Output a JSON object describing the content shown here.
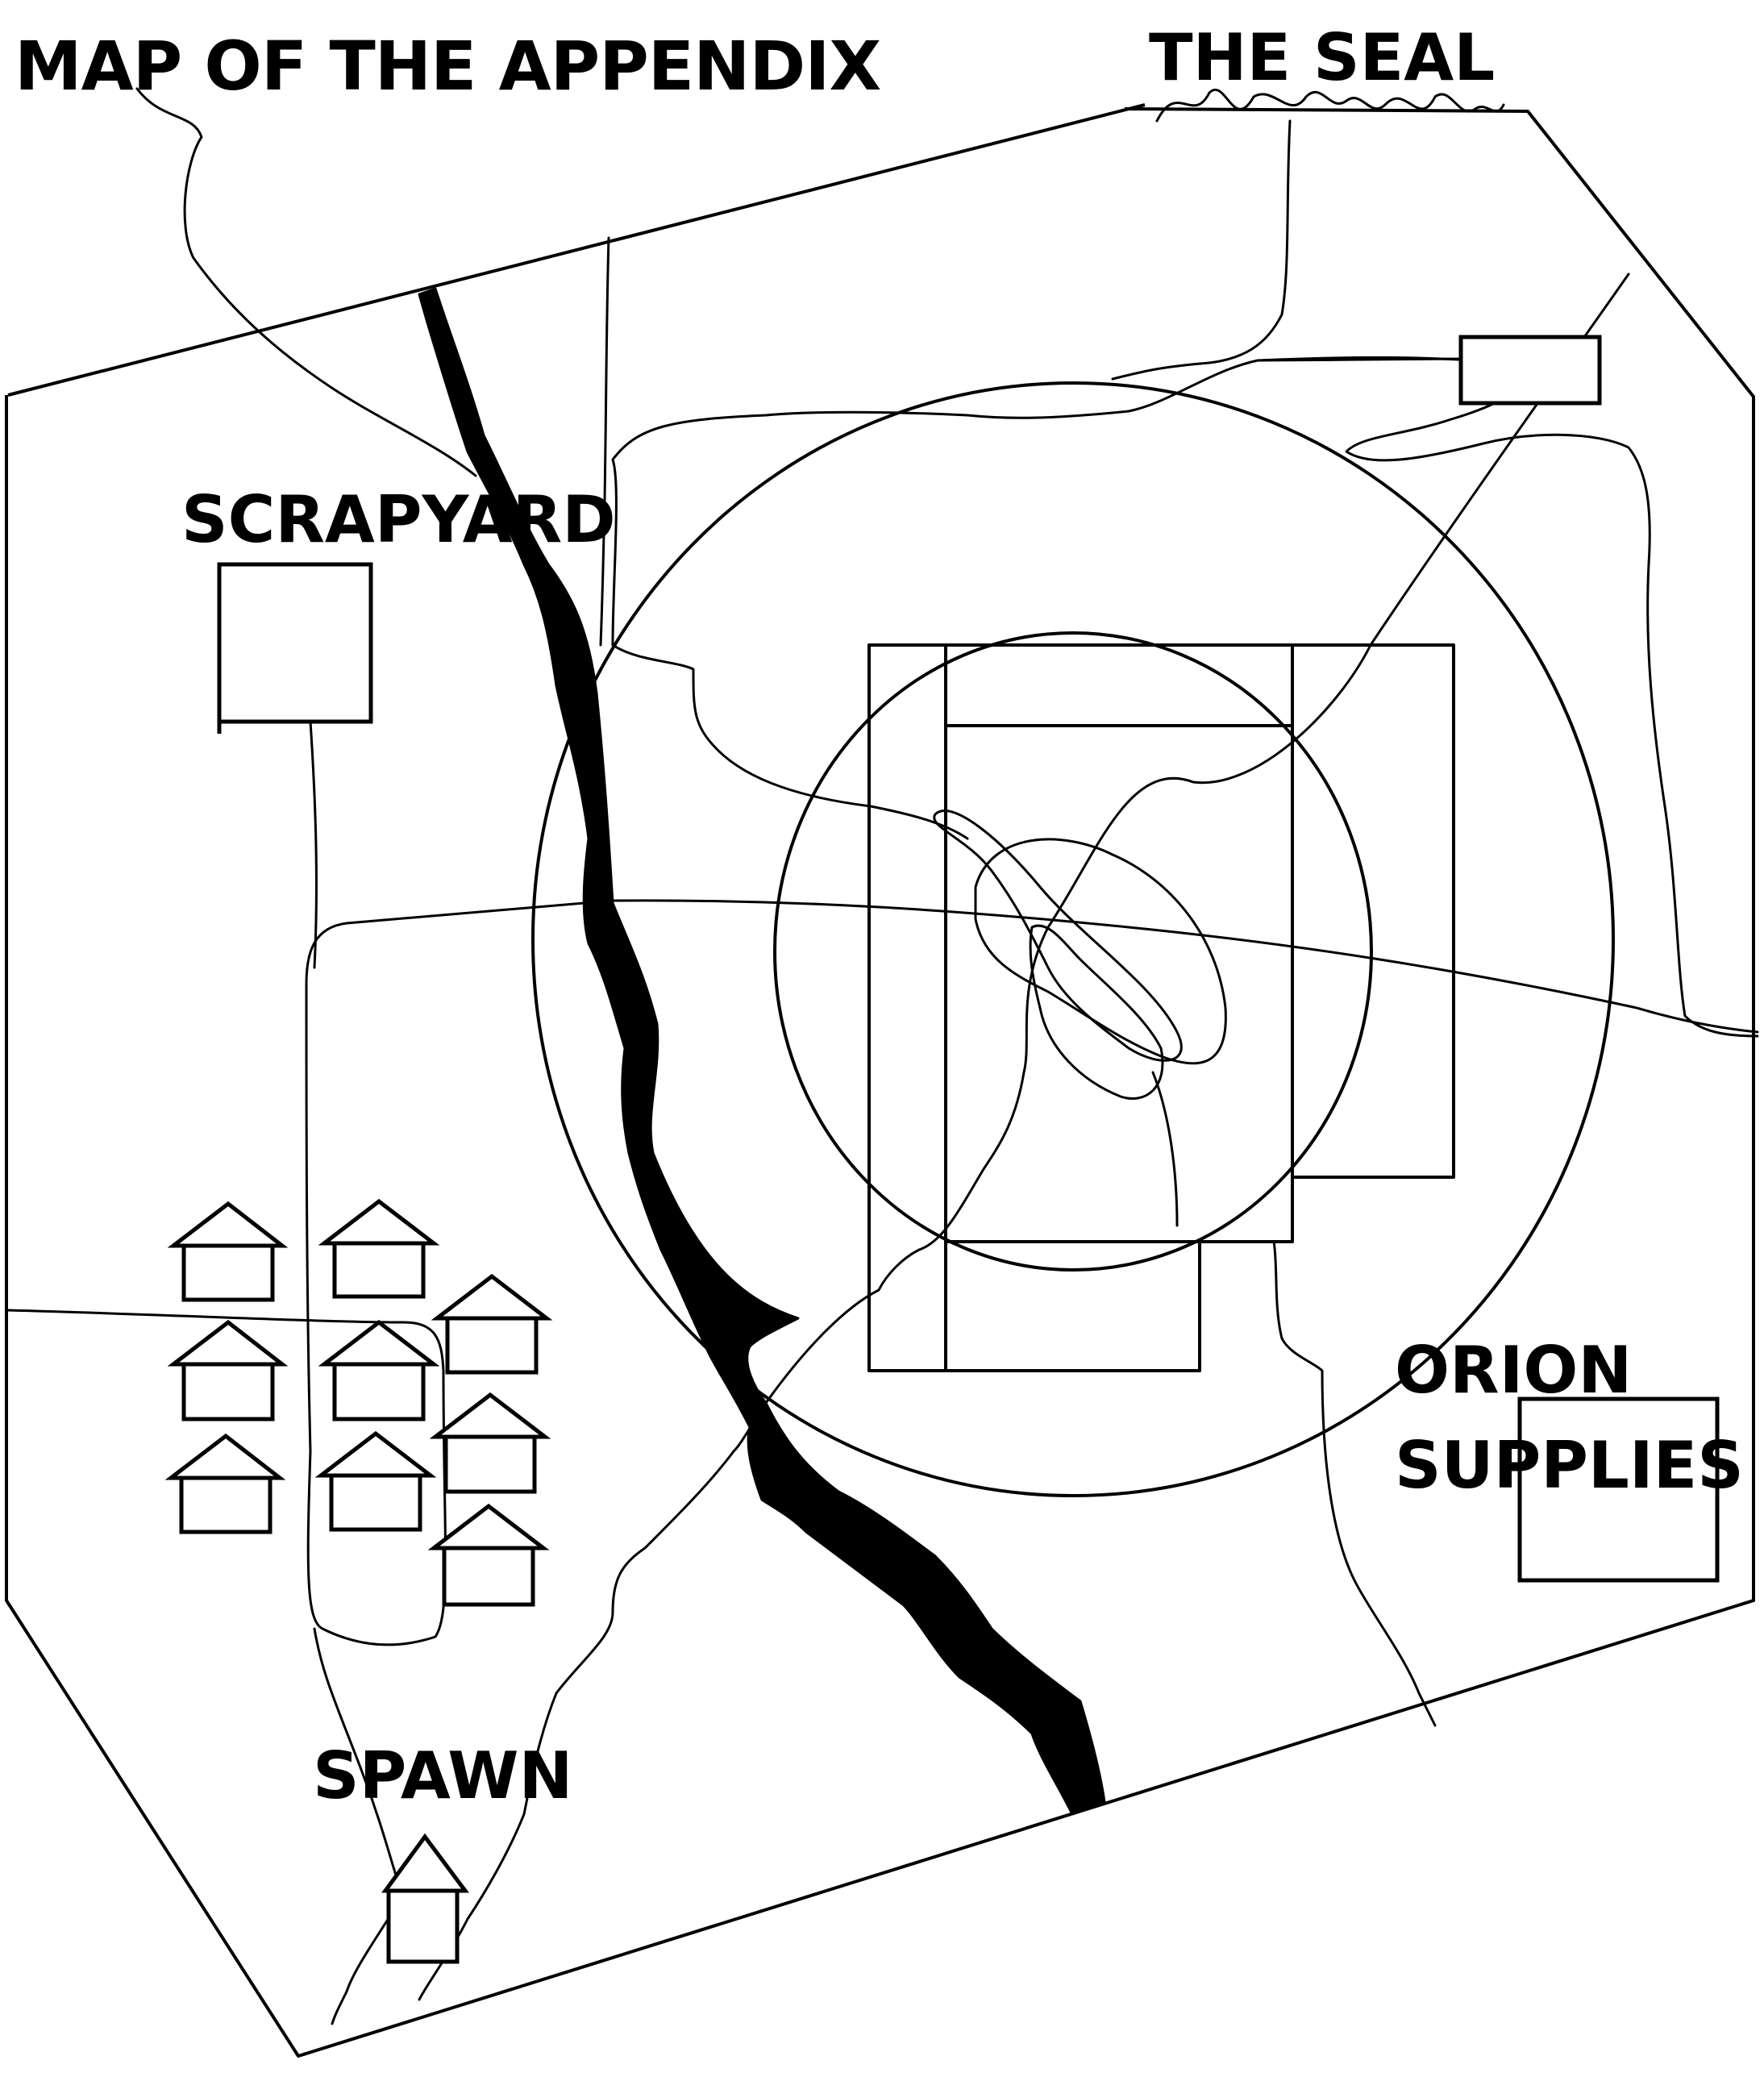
{
  "map": {
    "title": "MAP OF THE APPENDIX",
    "locations": {
      "seal": "THE SEAL",
      "scrapyard": "SCRAPYARD",
      "orion_line1": "ORION",
      "orion_line2": "SUPPLIES",
      "spawn": "SPAWN"
    }
  },
  "colors": {
    "ink": "#000000",
    "paper": "#ffffff"
  }
}
